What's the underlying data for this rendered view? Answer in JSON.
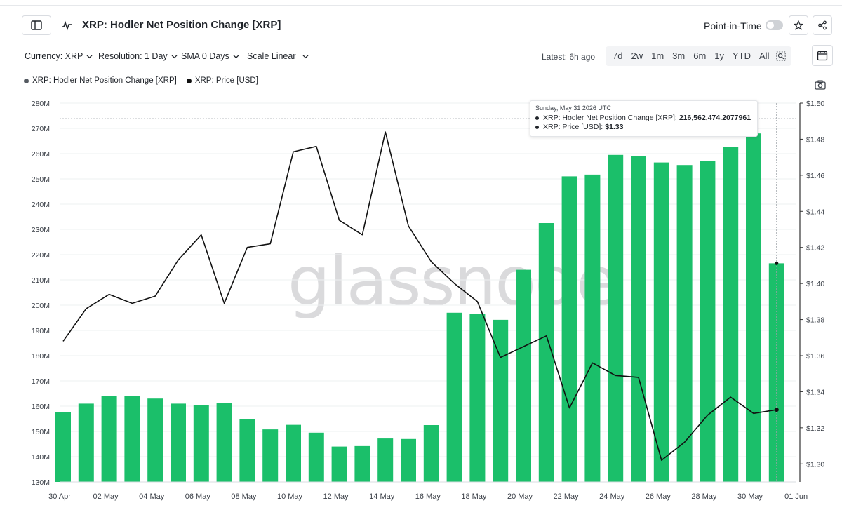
{
  "header": {
    "title": "XRP: Hodler Net Position Change [XRP]",
    "point_in_time_label": "Point-in-Time",
    "point_in_time_on": false
  },
  "controls": {
    "currency": "Currency: XRP",
    "resolution": "Resolution: 1 Day",
    "sma": "SMA 0 Days",
    "scale": "Scale Linear",
    "latest": "Latest: 6h ago",
    "ranges": [
      "7d",
      "2w",
      "1m",
      "3m",
      "6m",
      "1y",
      "YTD",
      "All"
    ]
  },
  "tooltip": {
    "date": "Sunday, May 31 2026 UTC",
    "series1_label": "XRP: Hodler Net Position Change [XRP]:",
    "series1_value": "216,562,474.2077961",
    "series2_label": "XRP: Price [USD]:",
    "series2_value": "$1.33"
  },
  "watermark": "glassnode",
  "colors": {
    "bar": "#1bbf6a",
    "line": "#111111",
    "axis": "#333333"
  },
  "chart_data": {
    "type": "bar",
    "x": [
      "30 Apr",
      "01 May",
      "02 May",
      "03 May",
      "04 May",
      "05 May",
      "06 May",
      "07 May",
      "08 May",
      "09 May",
      "10 May",
      "11 May",
      "12 May",
      "13 May",
      "14 May",
      "15 May",
      "16 May",
      "17 May",
      "18 May",
      "19 May",
      "20 May",
      "21 May",
      "22 May",
      "23 May",
      "24 May",
      "25 May",
      "26 May",
      "27 May",
      "28 May",
      "29 May",
      "30 May",
      "31 May"
    ],
    "x_tick_labels": [
      "30 Apr",
      "02 May",
      "04 May",
      "06 May",
      "08 May",
      "10 May",
      "12 May",
      "14 May",
      "16 May",
      "18 May",
      "20 May",
      "22 May",
      "24 May",
      "26 May",
      "28 May",
      "30 May",
      "01 Jun"
    ],
    "series": [
      {
        "name": "XRP: Hodler Net Position Change [XRP]",
        "type": "bar",
        "axis": "left",
        "values": [
          157.5,
          161,
          164,
          164,
          163,
          161,
          160.5,
          161.3,
          155,
          150.8,
          152.6,
          149.5,
          144,
          144.2,
          147.2,
          147,
          152.5,
          197,
          196.5,
          194.2,
          214,
          232.5,
          251,
          251.7,
          259.5,
          259,
          256.5,
          255.5,
          257,
          262.5,
          268,
          216.56
        ]
      },
      {
        "name": "XRP: Price [USD]",
        "type": "line",
        "axis": "right",
        "values": [
          1.368,
          1.386,
          1.394,
          1.389,
          1.393,
          1.413,
          1.427,
          1.389,
          1.42,
          1.422,
          1.473,
          1.476,
          1.435,
          1.427,
          1.484,
          1.432,
          1.412,
          1.4,
          1.39,
          1.359,
          1.365,
          1.371,
          1.331,
          1.356,
          1.349,
          1.348,
          1.302,
          1.312,
          1.327,
          1.337,
          1.328,
          1.33
        ]
      }
    ],
    "y_left": {
      "min": 130,
      "max": 280,
      "ticks": [
        "130M",
        "140M",
        "150M",
        "160M",
        "170M",
        "180M",
        "190M",
        "200M",
        "210M",
        "220M",
        "230M",
        "240M",
        "250M",
        "260M",
        "270M",
        "280M"
      ]
    },
    "y_right": {
      "min": 1.29,
      "max": 1.5,
      "ticks": [
        "$1.30",
        "$1.32",
        "$1.34",
        "$1.36",
        "$1.38",
        "$1.40",
        "$1.42",
        "$1.44",
        "$1.46",
        "$1.48",
        "$1.50"
      ]
    },
    "legend": "top-left",
    "grid": true
  }
}
